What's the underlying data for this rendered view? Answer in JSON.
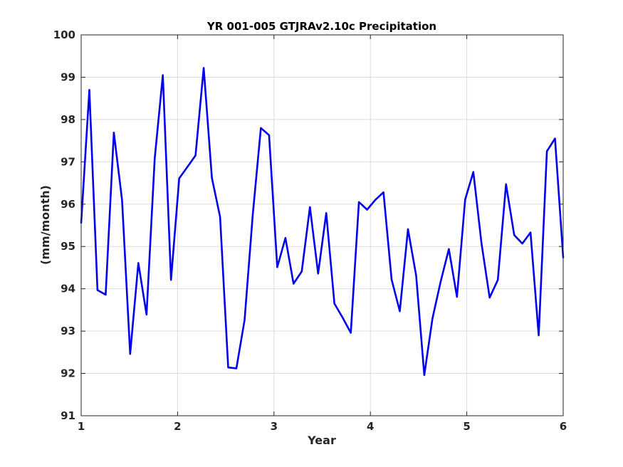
{
  "chart_data": {
    "type": "line",
    "title": "YR 001-005 GTJRAv2.10c Precipitation",
    "xlabel": "Year",
    "ylabel": "(mm/month)",
    "xlim": [
      1,
      6
    ],
    "ylim": [
      91,
      100
    ],
    "xticks": [
      1,
      2,
      3,
      4,
      5,
      6
    ],
    "yticks": [
      91,
      92,
      93,
      94,
      95,
      96,
      97,
      98,
      99,
      100
    ],
    "xtick_labels": [
      "1",
      "2",
      "3",
      "4",
      "5",
      "6"
    ],
    "ytick_labels": [
      "91",
      "92",
      "93",
      "94",
      "95",
      "96",
      "97",
      "98",
      "99",
      "100"
    ],
    "grid": true,
    "line_color": "#0000ee",
    "series": [
      {
        "values": [
          95.56,
          98.7,
          93.97,
          93.86,
          97.69,
          96.1,
          92.46,
          94.61,
          93.39,
          97.08,
          99.05,
          94.21,
          96.61,
          96.88,
          97.15,
          99.22,
          96.62,
          95.7,
          92.14,
          92.12,
          93.26,
          95.75,
          97.8,
          97.63,
          94.51,
          95.2,
          94.12,
          94.41,
          95.93,
          94.36,
          95.79,
          93.65,
          93.32,
          92.96,
          96.05,
          95.87,
          96.1,
          96.28,
          94.22,
          93.47,
          95.41,
          94.31,
          91.96,
          93.3,
          94.17,
          94.94,
          93.81,
          96.11,
          96.76,
          95.07,
          93.79,
          94.21,
          96.47,
          95.27,
          95.07,
          95.33,
          92.9,
          97.25,
          97.55,
          94.74
        ]
      }
    ]
  }
}
